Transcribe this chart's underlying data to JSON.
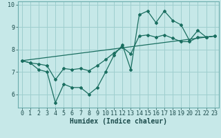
{
  "title": "",
  "xlabel": "Humidex (Indice chaleur)",
  "bg_color": "#c6e8e8",
  "line_color": "#1a6e60",
  "grid_color": "#9ecece",
  "xlim": [
    -0.5,
    23.5
  ],
  "ylim": [
    5.4,
    10.15
  ],
  "xticks": [
    0,
    1,
    2,
    3,
    4,
    5,
    6,
    7,
    8,
    9,
    10,
    11,
    12,
    13,
    14,
    15,
    16,
    17,
    18,
    19,
    20,
    21,
    22,
    23
  ],
  "yticks": [
    6,
    7,
    8,
    9,
    10
  ],
  "line1_x": [
    0,
    1,
    2,
    3,
    4,
    5,
    6,
    7,
    8,
    9,
    10,
    11,
    12,
    13,
    14,
    15,
    16,
    17,
    18,
    19,
    20,
    21,
    22,
    23
  ],
  "line1_y": [
    7.5,
    7.4,
    7.1,
    7.0,
    5.62,
    6.45,
    6.3,
    6.3,
    6.0,
    6.3,
    7.0,
    7.75,
    8.2,
    7.1,
    9.55,
    9.72,
    9.2,
    9.72,
    9.3,
    9.1,
    8.4,
    8.85,
    8.55,
    8.6
  ],
  "line2_x": [
    0,
    1,
    2,
    3,
    4,
    5,
    6,
    7,
    8,
    9,
    10,
    11,
    12,
    13,
    14,
    15,
    16,
    17,
    18,
    19,
    20,
    21,
    22,
    23
  ],
  "line2_y": [
    7.5,
    7.4,
    7.35,
    7.28,
    6.65,
    7.15,
    7.1,
    7.15,
    7.05,
    7.28,
    7.55,
    7.85,
    8.1,
    7.8,
    8.6,
    8.65,
    8.55,
    8.65,
    8.5,
    8.35,
    8.35,
    8.55,
    8.55,
    8.6
  ],
  "line3_x": [
    0,
    23
  ],
  "line3_y": [
    7.5,
    8.6
  ],
  "tick_fontsize": 6,
  "xlabel_fontsize": 7
}
